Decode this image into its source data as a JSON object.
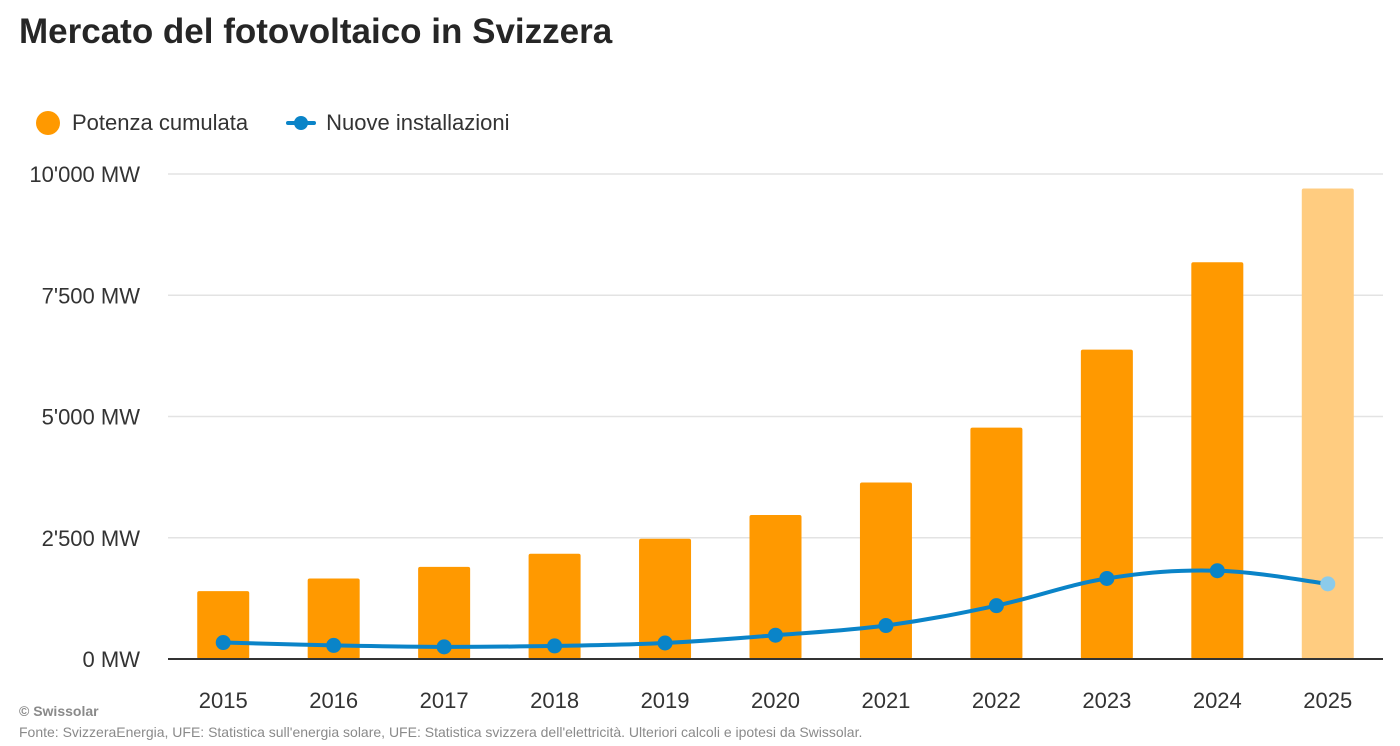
{
  "colors": {
    "bar": "#ff9900",
    "bar_projected": "#ffcc80",
    "line": "#0a84c8",
    "line_point_projected": "#8ccbea",
    "grid": "#e3e3e3",
    "axis": "#333333",
    "title": "#262626",
    "footer": "#8a8a8a"
  },
  "chart_data": {
    "type": "bar",
    "title": "Mercato del fotovoltaico in Svizzera",
    "subtitle": "",
    "xlabel": "",
    "ylabel": "",
    "ylim": [
      0,
      10000
    ],
    "y_ticks": [
      0,
      2500,
      5000,
      7500,
      10000
    ],
    "y_tick_labels": [
      "0 MW",
      "2'500 MW",
      "5'000 MW",
      "7'500 MW",
      "10'000 MW"
    ],
    "categories": [
      "2015",
      "2016",
      "2017",
      "2018",
      "2019",
      "2020",
      "2021",
      "2022",
      "2023",
      "2024",
      "2025"
    ],
    "grid": true,
    "legend_placement": "top-left",
    "series": [
      {
        "name": "Potenza cumulata",
        "type": "bar",
        "values": [
          1400,
          1660,
          1900,
          2170,
          2480,
          2970,
          3640,
          4770,
          6380,
          8180,
          9700
        ]
      },
      {
        "name": "Nuove installazioni",
        "type": "line",
        "values": [
          340,
          280,
          250,
          270,
          330,
          490,
          690,
          1100,
          1660,
          1820,
          1550
        ]
      }
    ],
    "projected_categories": [
      "2025"
    ]
  },
  "footer": {
    "copyright": "© Swissolar",
    "source": "Fonte: SvizzeraEnergia, UFE: Statistica sull'energia solare, UFE: Statistica svizzera dell'elettricità. Ulteriori calcoli e ipotesi da Swissolar."
  }
}
